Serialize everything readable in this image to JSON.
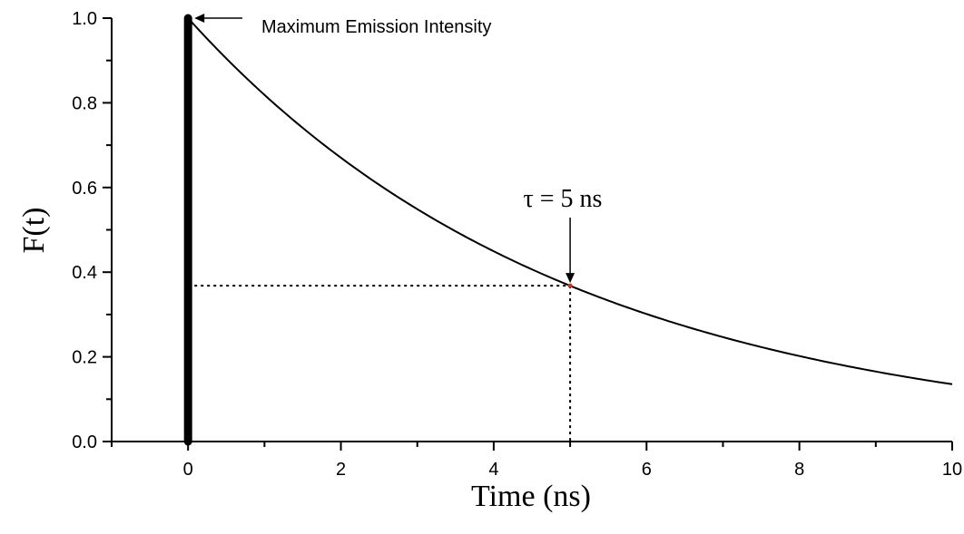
{
  "chart_data": {
    "type": "line",
    "title": "",
    "xlabel": "Time (ns)",
    "ylabel": "F(t)",
    "xlim": [
      -1,
      10
    ],
    "ylim": [
      0,
      1
    ],
    "x_ticks": [
      0,
      2,
      4,
      6,
      8,
      10
    ],
    "y_ticks": [
      "0.0",
      "0.2",
      "0.4",
      "0.6",
      "0.8",
      "1.0"
    ],
    "grid": false,
    "decay": {
      "tau": 5,
      "amplitude": 1.0,
      "x_start": 0,
      "x_end": 10
    },
    "excitation_pulse": {
      "x": 0,
      "y_min": 0,
      "y_max": 1.0
    },
    "tau_marker": {
      "x": 5,
      "y": 0.368,
      "label": "τ = 5 ns"
    },
    "peak_annotation": {
      "x": 0,
      "y": 1.0,
      "label": "Maximum Emission Intensity"
    }
  }
}
